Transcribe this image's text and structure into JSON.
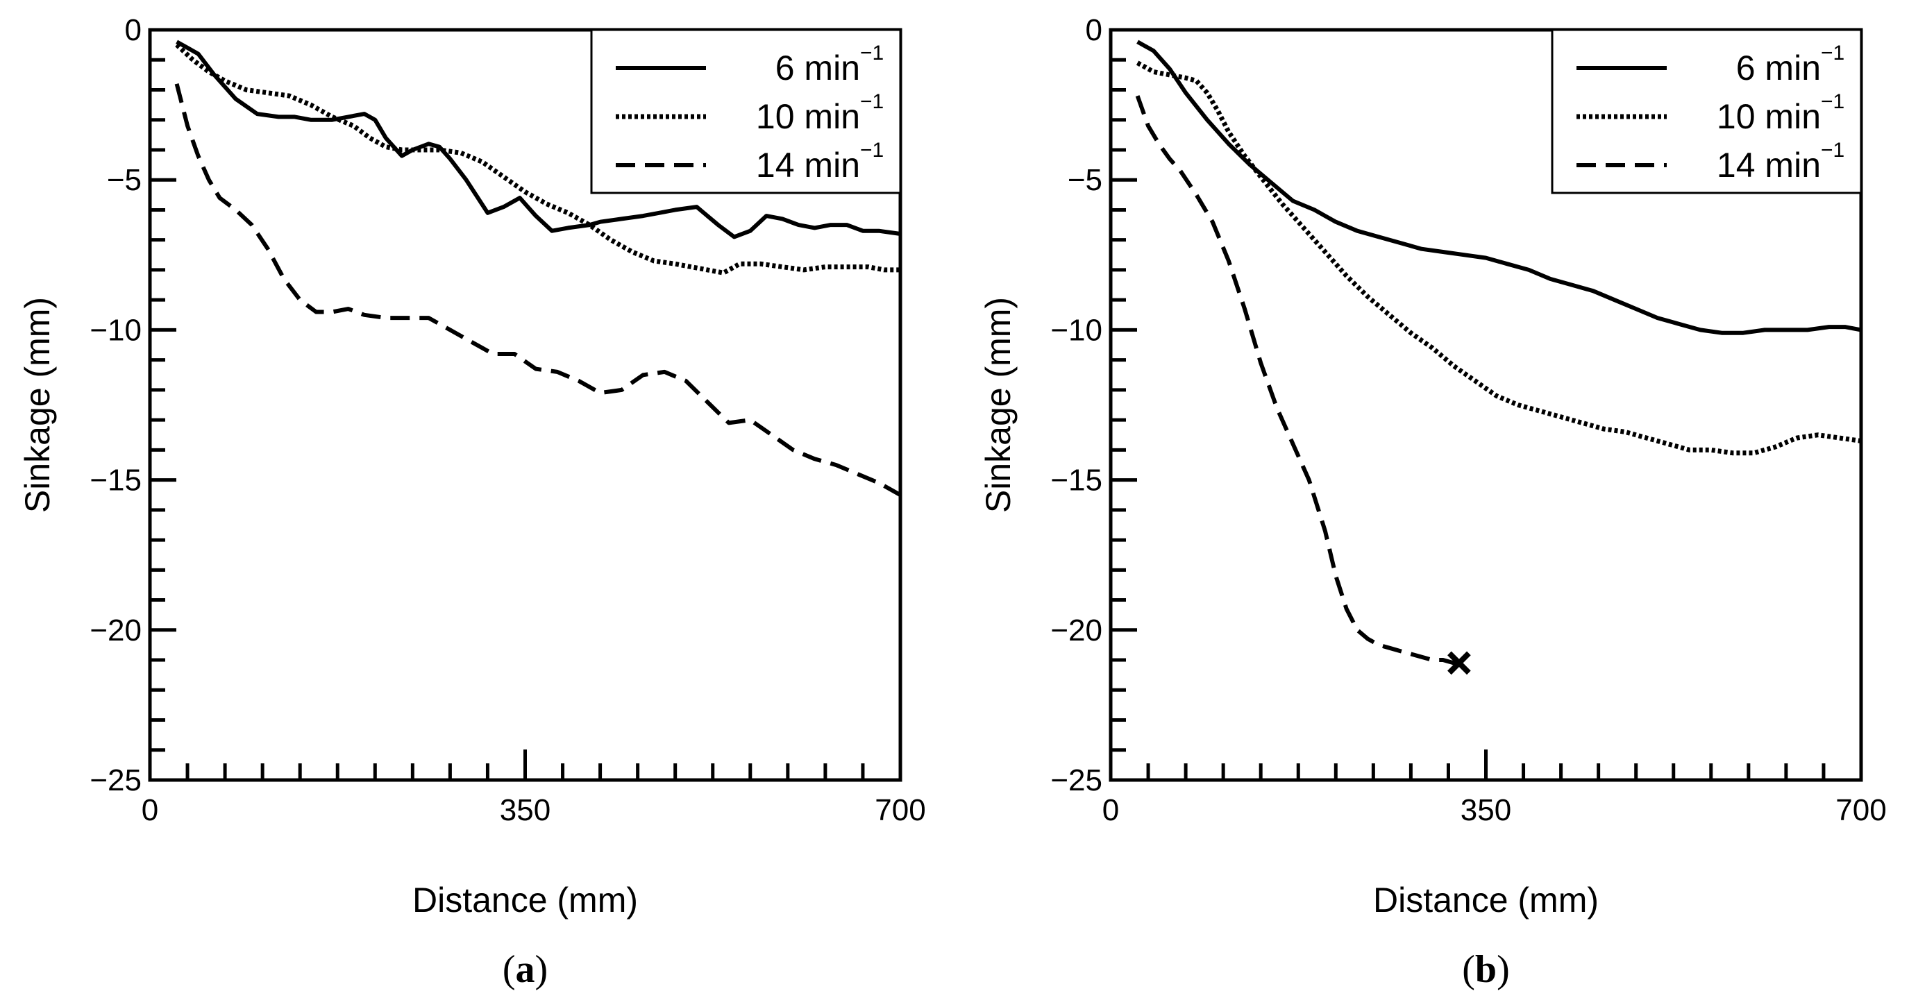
{
  "chart_data": [
    {
      "type": "line",
      "panel_label": "a",
      "xlabel": "Distance (mm)",
      "ylabel": "Sinkage (mm)",
      "xlim": [
        0,
        700
      ],
      "ylim": [
        -25,
        0
      ],
      "xticks": [
        0,
        350,
        700
      ],
      "xtick_labels": [
        "0",
        "350",
        "700"
      ],
      "yticks": [
        0,
        -5,
        -10,
        -15,
        -20,
        -25
      ],
      "ytick_labels": [
        "0",
        "−5",
        "−10",
        "−15",
        "−20",
        "−25"
      ],
      "grid": false,
      "legend_position": "top-right",
      "series": [
        {
          "name": "6 min",
          "name_sup": "−1",
          "style": "solid",
          "x": [
            25,
            35,
            45,
            60,
            80,
            100,
            120,
            135,
            150,
            170,
            185,
            200,
            210,
            220,
            235,
            245,
            260,
            270,
            280,
            295,
            315,
            330,
            345,
            360,
            375,
            390,
            410,
            420,
            440,
            460,
            475,
            490,
            510,
            530,
            545,
            560,
            575,
            590,
            605,
            620,
            635,
            650,
            665,
            680,
            700
          ],
          "values": [
            -0.4,
            -0.6,
            -0.8,
            -1.5,
            -2.3,
            -2.8,
            -2.9,
            -2.9,
            -3.0,
            -3.0,
            -2.9,
            -2.8,
            -3.0,
            -3.6,
            -4.2,
            -4.0,
            -3.8,
            -3.9,
            -4.3,
            -5.0,
            -6.1,
            -5.9,
            -5.6,
            -6.2,
            -6.7,
            -6.6,
            -6.5,
            -6.4,
            -6.3,
            -6.2,
            -6.1,
            -6.0,
            -5.9,
            -6.5,
            -6.9,
            -6.7,
            -6.2,
            -6.3,
            -6.5,
            -6.6,
            -6.5,
            -6.5,
            -6.7,
            -6.7,
            -6.8
          ]
        },
        {
          "name": "10 min",
          "name_sup": "−1",
          "style": "dotted",
          "x": [
            25,
            40,
            55,
            70,
            90,
            110,
            130,
            150,
            170,
            190,
            205,
            220,
            235,
            250,
            270,
            290,
            310,
            330,
            350,
            370,
            390,
            410,
            430,
            450,
            470,
            490,
            505,
            520,
            535,
            550,
            570,
            590,
            610,
            630,
            650,
            670,
            685,
            700
          ],
          "values": [
            -0.5,
            -1.0,
            -1.4,
            -1.7,
            -2.0,
            -2.1,
            -2.2,
            -2.5,
            -2.9,
            -3.2,
            -3.6,
            -3.9,
            -4.0,
            -4.0,
            -4.0,
            -4.1,
            -4.4,
            -4.9,
            -5.4,
            -5.8,
            -6.1,
            -6.5,
            -7.0,
            -7.4,
            -7.7,
            -7.8,
            -7.9,
            -8.0,
            -8.1,
            -7.8,
            -7.8,
            -7.9,
            -8.0,
            -7.9,
            -7.9,
            -7.9,
            -8.0,
            -8.0
          ]
        },
        {
          "name": "14 min",
          "name_sup": "−1",
          "style": "dashed",
          "x": [
            25,
            35,
            45,
            55,
            65,
            80,
            95,
            110,
            125,
            140,
            155,
            170,
            185,
            200,
            220,
            240,
            260,
            280,
            300,
            320,
            340,
            360,
            380,
            400,
            420,
            440,
            460,
            480,
            500,
            520,
            540,
            560,
            580,
            600,
            620,
            640,
            660,
            680,
            700
          ],
          "values": [
            -1.8,
            -3.2,
            -4.2,
            -5.0,
            -5.6,
            -6.0,
            -6.5,
            -7.3,
            -8.3,
            -9.0,
            -9.4,
            -9.4,
            -9.3,
            -9.5,
            -9.6,
            -9.6,
            -9.6,
            -10.0,
            -10.4,
            -10.8,
            -10.8,
            -11.3,
            -11.4,
            -11.7,
            -12.1,
            -12.0,
            -11.5,
            -11.4,
            -11.7,
            -12.4,
            -13.1,
            -13.0,
            -13.5,
            -14.0,
            -14.3,
            -14.5,
            -14.8,
            -15.1,
            -15.5
          ]
        }
      ]
    },
    {
      "type": "line",
      "panel_label": "b",
      "xlabel": "Distance (mm)",
      "ylabel": "Sinkage (mm)",
      "xlim": [
        0,
        700
      ],
      "ylim": [
        -25,
        0
      ],
      "xticks": [
        0,
        350,
        700
      ],
      "xtick_labels": [
        "0",
        "350",
        "700"
      ],
      "yticks": [
        0,
        -5,
        -10,
        -15,
        -20,
        -25
      ],
      "ytick_labels": [
        "0",
        "−5",
        "−10",
        "−15",
        "−20",
        "−25"
      ],
      "grid": false,
      "legend_position": "top-right",
      "end_marker": {
        "series": "14 min",
        "x": 325,
        "y": -21.1,
        "symbol": "x"
      },
      "series": [
        {
          "name": "6 min",
          "name_sup": "−1",
          "style": "solid",
          "x": [
            25,
            40,
            55,
            70,
            90,
            110,
            130,
            150,
            170,
            190,
            210,
            230,
            250,
            270,
            290,
            310,
            330,
            350,
            370,
            390,
            410,
            430,
            450,
            470,
            490,
            510,
            530,
            550,
            570,
            590,
            610,
            630,
            650,
            670,
            685,
            700
          ],
          "values": [
            -0.4,
            -0.7,
            -1.3,
            -2.1,
            -3.0,
            -3.8,
            -4.5,
            -5.1,
            -5.7,
            -6.0,
            -6.4,
            -6.7,
            -6.9,
            -7.1,
            -7.3,
            -7.4,
            -7.5,
            -7.6,
            -7.8,
            -8.0,
            -8.3,
            -8.5,
            -8.7,
            -9.0,
            -9.3,
            -9.6,
            -9.8,
            -10.0,
            -10.1,
            -10.1,
            -10.0,
            -10.0,
            -10.0,
            -9.9,
            -9.9,
            -10.0
          ]
        },
        {
          "name": "10 min",
          "name_sup": "−1",
          "style": "dotted",
          "x": [
            25,
            40,
            55,
            70,
            80,
            90,
            100,
            110,
            125,
            140,
            160,
            180,
            200,
            220,
            240,
            260,
            280,
            300,
            320,
            340,
            360,
            380,
            400,
            420,
            440,
            460,
            480,
            500,
            520,
            540,
            560,
            580,
            600,
            620,
            640,
            660,
            680,
            700
          ],
          "values": [
            -1.1,
            -1.4,
            -1.5,
            -1.6,
            -1.7,
            -2.1,
            -2.7,
            -3.4,
            -4.2,
            -4.9,
            -5.8,
            -6.6,
            -7.4,
            -8.2,
            -8.9,
            -9.5,
            -10.1,
            -10.6,
            -11.2,
            -11.7,
            -12.2,
            -12.5,
            -12.7,
            -12.9,
            -13.1,
            -13.3,
            -13.4,
            -13.6,
            -13.8,
            -14.0,
            -14.0,
            -14.1,
            -14.1,
            -13.9,
            -13.6,
            -13.5,
            -13.6,
            -13.7
          ]
        },
        {
          "name": "14 min",
          "name_sup": "−1",
          "style": "dashed",
          "x": [
            25,
            35,
            45,
            55,
            65,
            80,
            95,
            110,
            125,
            140,
            155,
            170,
            185,
            200,
            210,
            220,
            230,
            240,
            250,
            260,
            270,
            280,
            290,
            300,
            310,
            320,
            325
          ],
          "values": [
            -2.2,
            -3.2,
            -3.8,
            -4.3,
            -4.7,
            -5.5,
            -6.4,
            -7.7,
            -9.3,
            -11.1,
            -12.6,
            -13.8,
            -15.0,
            -16.7,
            -18.2,
            -19.3,
            -20.0,
            -20.3,
            -20.5,
            -20.6,
            -20.7,
            -20.8,
            -20.9,
            -21.0,
            -21.0,
            -21.1,
            -21.1
          ]
        }
      ]
    }
  ]
}
